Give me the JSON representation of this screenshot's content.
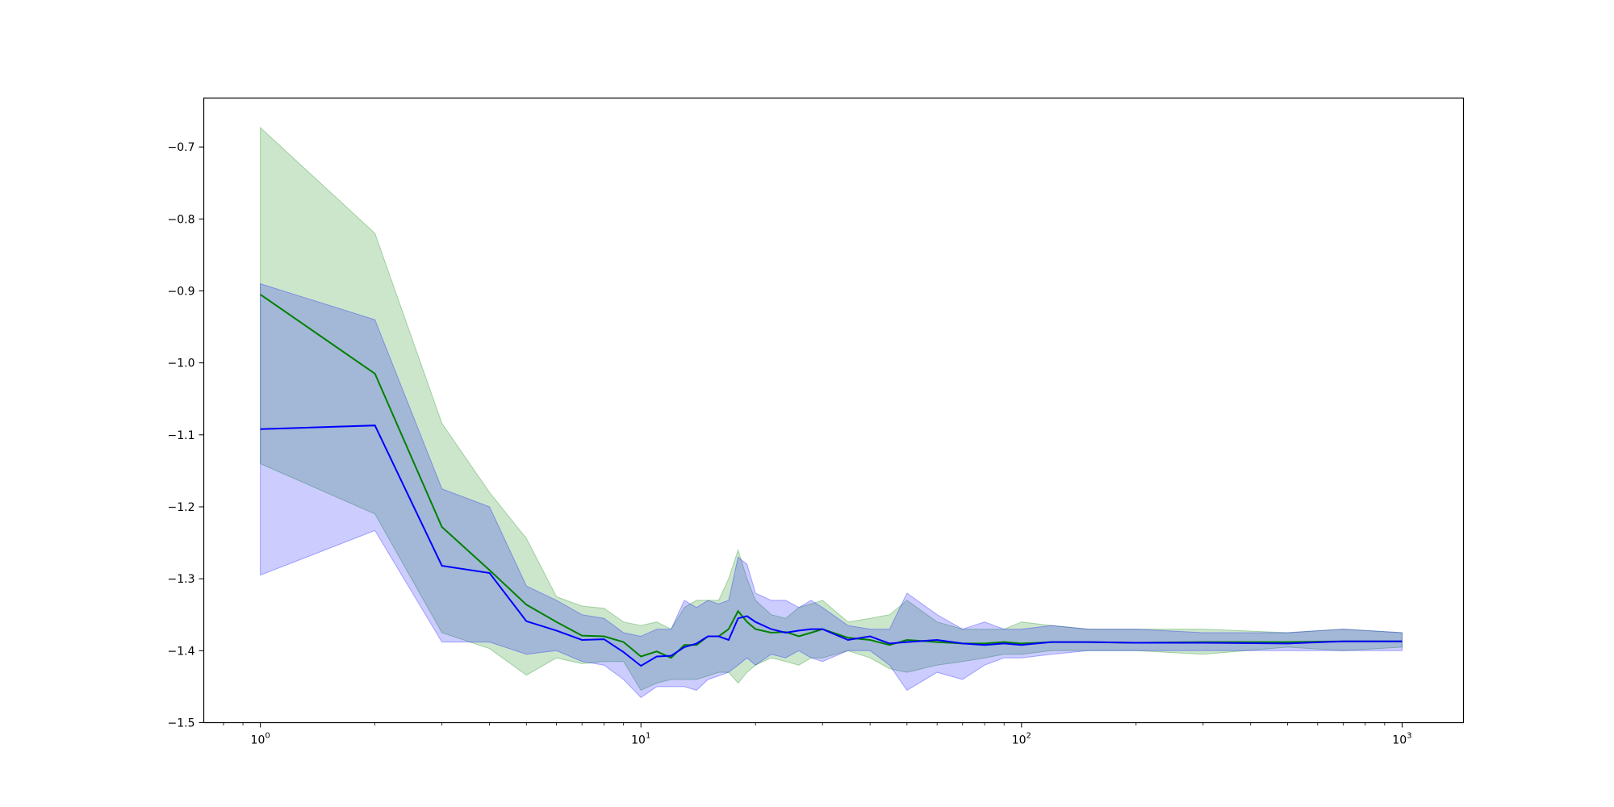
{
  "chart_data": {
    "type": "line",
    "title": "",
    "xlabel": "",
    "ylabel": "",
    "xscale": "log",
    "xlim": [
      0.71,
      1450
    ],
    "ylim": [
      -1.5,
      -0.632
    ],
    "grid": false,
    "legend": "none",
    "x_ticks": [
      {
        "base": "10",
        "exp": "0",
        "value": 1
      },
      {
        "base": "10",
        "exp": "1",
        "value": 10
      },
      {
        "base": "10",
        "exp": "2",
        "value": 100
      },
      {
        "base": "10",
        "exp": "3",
        "value": 1000
      }
    ],
    "y_ticks": [
      {
        "label": "−0.7",
        "value": -0.7
      },
      {
        "label": "−0.8",
        "value": -0.8
      },
      {
        "label": "−0.9",
        "value": -0.9
      },
      {
        "label": "−1.0",
        "value": -1.0
      },
      {
        "label": "−1.1",
        "value": -1.1
      },
      {
        "label": "−1.2",
        "value": -1.2
      },
      {
        "label": "−1.3",
        "value": -1.3
      },
      {
        "label": "−1.4",
        "value": -1.4
      },
      {
        "label": "−1.5",
        "value": -1.5
      }
    ],
    "series": [
      {
        "color": "#008000",
        "band_color": "#008000",
        "band_opacity": 0.2,
        "x": [
          1,
          2,
          3,
          4,
          5,
          6,
          7,
          8,
          9,
          10,
          11,
          12,
          13,
          14,
          15,
          16,
          17,
          18,
          19,
          20,
          22,
          24,
          26,
          28,
          30,
          35,
          40,
          45,
          50,
          60,
          70,
          80,
          90,
          100,
          120,
          150,
          200,
          300,
          500,
          700,
          1000
        ],
        "mean": [
          -0.905,
          -1.015,
          -1.228,
          -1.288,
          -1.336,
          -1.36,
          -1.379,
          -1.38,
          -1.388,
          -1.408,
          -1.401,
          -1.41,
          -1.392,
          -1.392,
          -1.38,
          -1.38,
          -1.37,
          -1.345,
          -1.36,
          -1.37,
          -1.375,
          -1.374,
          -1.38,
          -1.375,
          -1.37,
          -1.382,
          -1.385,
          -1.392,
          -1.385,
          -1.388,
          -1.39,
          -1.39,
          -1.388,
          -1.39,
          -1.388,
          -1.388,
          -1.389,
          -1.388,
          -1.388,
          -1.387,
          -1.387
        ],
        "upper": [
          -0.673,
          -0.82,
          -1.084,
          -1.18,
          -1.244,
          -1.325,
          -1.338,
          -1.341,
          -1.36,
          -1.365,
          -1.36,
          -1.37,
          -1.34,
          -1.33,
          -1.33,
          -1.33,
          -1.3,
          -1.26,
          -1.3,
          -1.33,
          -1.35,
          -1.355,
          -1.34,
          -1.335,
          -1.33,
          -1.36,
          -1.355,
          -1.35,
          -1.33,
          -1.36,
          -1.37,
          -1.37,
          -1.37,
          -1.36,
          -1.365,
          -1.37,
          -1.37,
          -1.37,
          -1.375,
          -1.37,
          -1.375
        ],
        "lower": [
          -1.14,
          -1.21,
          -1.375,
          -1.397,
          -1.434,
          -1.41,
          -1.418,
          -1.415,
          -1.415,
          -1.455,
          -1.445,
          -1.44,
          -1.44,
          -1.44,
          -1.435,
          -1.43,
          -1.43,
          -1.445,
          -1.43,
          -1.42,
          -1.41,
          -1.415,
          -1.42,
          -1.41,
          -1.41,
          -1.4,
          -1.41,
          -1.425,
          -1.43,
          -1.42,
          -1.415,
          -1.41,
          -1.405,
          -1.405,
          -1.4,
          -1.4,
          -1.4,
          -1.405,
          -1.395,
          -1.4,
          -1.395
        ]
      },
      {
        "color": "#0000ff",
        "band_color": "#0000ff",
        "band_opacity": 0.2,
        "x": [
          1,
          2,
          3,
          4,
          5,
          6,
          7,
          8,
          9,
          10,
          11,
          12,
          13,
          14,
          15,
          16,
          17,
          18,
          19,
          20,
          22,
          24,
          26,
          28,
          30,
          35,
          40,
          45,
          50,
          60,
          70,
          80,
          90,
          100,
          120,
          150,
          200,
          300,
          500,
          700,
          1000
        ],
        "mean": [
          -1.092,
          -1.087,
          -1.282,
          -1.292,
          -1.359,
          -1.372,
          -1.385,
          -1.384,
          -1.402,
          -1.421,
          -1.408,
          -1.407,
          -1.395,
          -1.39,
          -1.38,
          -1.38,
          -1.385,
          -1.355,
          -1.352,
          -1.36,
          -1.37,
          -1.375,
          -1.372,
          -1.37,
          -1.37,
          -1.385,
          -1.38,
          -1.39,
          -1.388,
          -1.385,
          -1.39,
          -1.392,
          -1.39,
          -1.392,
          -1.388,
          -1.388,
          -1.389,
          -1.389,
          -1.39,
          -1.387,
          -1.387
        ],
        "upper": [
          -0.89,
          -0.94,
          -1.175,
          -1.2,
          -1.31,
          -1.33,
          -1.35,
          -1.355,
          -1.375,
          -1.38,
          -1.37,
          -1.37,
          -1.33,
          -1.34,
          -1.33,
          -1.335,
          -1.33,
          -1.27,
          -1.28,
          -1.32,
          -1.33,
          -1.33,
          -1.34,
          -1.33,
          -1.34,
          -1.365,
          -1.37,
          -1.37,
          -1.32,
          -1.35,
          -1.37,
          -1.36,
          -1.37,
          -1.37,
          -1.365,
          -1.37,
          -1.37,
          -1.375,
          -1.375,
          -1.37,
          -1.375
        ],
        "lower": [
          -1.295,
          -1.233,
          -1.388,
          -1.388,
          -1.405,
          -1.4,
          -1.415,
          -1.42,
          -1.44,
          -1.465,
          -1.45,
          -1.45,
          -1.45,
          -1.455,
          -1.44,
          -1.435,
          -1.43,
          -1.42,
          -1.41,
          -1.42,
          -1.405,
          -1.41,
          -1.4,
          -1.41,
          -1.415,
          -1.4,
          -1.4,
          -1.42,
          -1.455,
          -1.43,
          -1.44,
          -1.42,
          -1.41,
          -1.41,
          -1.405,
          -1.4,
          -1.4,
          -1.4,
          -1.4,
          -1.4,
          -1.4
        ]
      }
    ]
  }
}
